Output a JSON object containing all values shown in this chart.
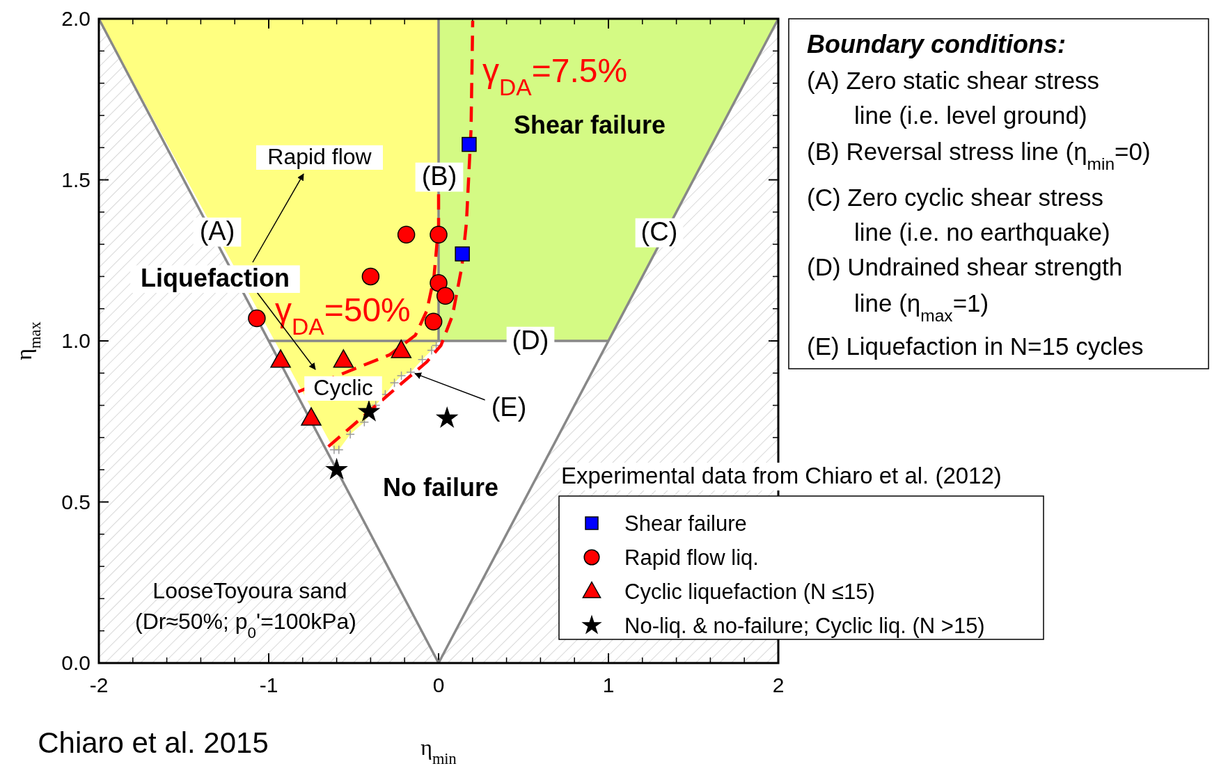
{
  "chart_data": {
    "type": "scatter",
    "xlabel": "η$_{min}$",
    "ylabel": "η$_{max}$",
    "xlim": [
      -2,
      2
    ],
    "ylim": [
      0,
      2
    ],
    "xticks": [
      -2,
      -1,
      0,
      1,
      2
    ],
    "yticks": [
      {
        "value": 0,
        "label": "0.0"
      },
      {
        "value": 0.5,
        "label": "0.5"
      },
      {
        "value": 1,
        "label": "1.0"
      },
      {
        "value": 1.5,
        "label": "1.5"
      },
      {
        "value": 2,
        "label": "2.0"
      }
    ],
    "legend": "bottom right",
    "legend_title": "Experimental data from Chiaro et al. (2012)",
    "annotations": [
      "Boundary conditions:",
      "(A) Zero static shear stress",
      "line (i.e. level ground)",
      "(B) Reversal stress line (η$_{min}$=0)",
      "(C) Zero cyclic shear stress",
      "line (i.e. no earthquake)",
      "(D) Undrained shear strength",
      "line (η$_{max}$=1)",
      "(E) Liquefaction in N=15 cycles",
      "(A)",
      "(B)",
      "(C)",
      "(D)",
      {
        "text": "(E)",
        "x": -0.164,
        "y": 0.903
      },
      "Rapid flow",
      "Liquefaction",
      "Cyclic",
      "Shear failure",
      "No failure",
      "LooseToyoura sand",
      "(Dr≈50%; p$_{0}$'=100kPa)",
      "Chiaro et al. 2015"
    ],
    "series": [
      {
        "type": "area",
        "color": "#888888",
        "x": [
          -2,
          0
        ],
        "values": [
          2,
          0
        ]
      },
      {
        "type": "line",
        "color": "#888888",
        "x": [
          0,
          0
        ],
        "values": [
          1,
          2
        ]
      },
      {
        "type": "area",
        "color": "#888888",
        "x": [
          0,
          2
        ],
        "values": [
          0,
          2
        ]
      },
      {
        "type": "line",
        "color": "#888888",
        "x": [
          -1,
          1
        ],
        "values": [
          1,
          1
        ]
      },
      {
        "type": "scatter",
        "marker": "cross",
        "color": "#999999",
        "x": [
          -0.615,
          -0.587,
          -0.52,
          -0.437,
          -0.37,
          -0.314,
          -0.26,
          -0.219,
          -0.164,
          -0.096,
          -0.041,
          -0.014
        ],
        "values": [
          0.662,
          0.662,
          0.71,
          0.748,
          0.8,
          0.834,
          0.87,
          0.892,
          0.903,
          0.942,
          0.971,
          0.986
        ]
      },
      {
        "type": "line",
        "name": "γ$_{DA}$=7.5%",
        "color": "#ff0000",
        "line_style": "dashed",
        "x": [
          -0.649,
          -0.451,
          -0.26,
          -0.069,
          0.014,
          0.082,
          0.137,
          0.164,
          0.191,
          0.201
        ],
        "values": [
          0.672,
          0.762,
          0.849,
          0.935,
          0.986,
          1.079,
          1.23,
          1.367,
          1.655,
          1.994
        ]
      },
      {
        "type": "line",
        "name": "γ$_{DA}$=50%",
        "color": "#ff0000",
        "line_style": "dashed",
        "x": [
          -0.827,
          -0.492,
          -0.287,
          -0.136,
          -0.069,
          -0.028,
          -0.007,
          0,
          0
        ],
        "values": [
          0.842,
          0.914,
          0.957,
          1.018,
          1.094,
          1.194,
          1.317,
          1.35,
          1.46
        ]
      },
      {
        "name": "Shear failure",
        "marker": "square",
        "color": "#0000ff",
        "x": [
          0.18,
          0.14
        ],
        "values": [
          1.61,
          1.27
        ]
      },
      {
        "name": "Rapid flow liq.",
        "marker": "circle",
        "color": "#ff0000",
        "x": [
          -1.07,
          -0.4,
          -0.19,
          0,
          0,
          0.04,
          -0.03
        ],
        "values": [
          1.07,
          1.2,
          1.33,
          1.33,
          1.18,
          1.14,
          1.06
        ]
      },
      {
        "name": "Cyclic liquefaction (N ≤15)",
        "marker": "triangle",
        "color": "#ff0000",
        "x": [
          -0.93,
          -0.56,
          -0.22,
          -0.75
        ],
        "values": [
          0.94,
          0.94,
          0.97,
          0.76
        ]
      },
      {
        "name": "No-liq. & no-failure; Cyclic liq. (N >15)",
        "marker": "star",
        "color": "#000000",
        "x": [
          -0.6,
          -0.41,
          0.05
        ],
        "values": [
          0.6,
          0.78,
          0.76
        ]
      }
    ]
  }
}
